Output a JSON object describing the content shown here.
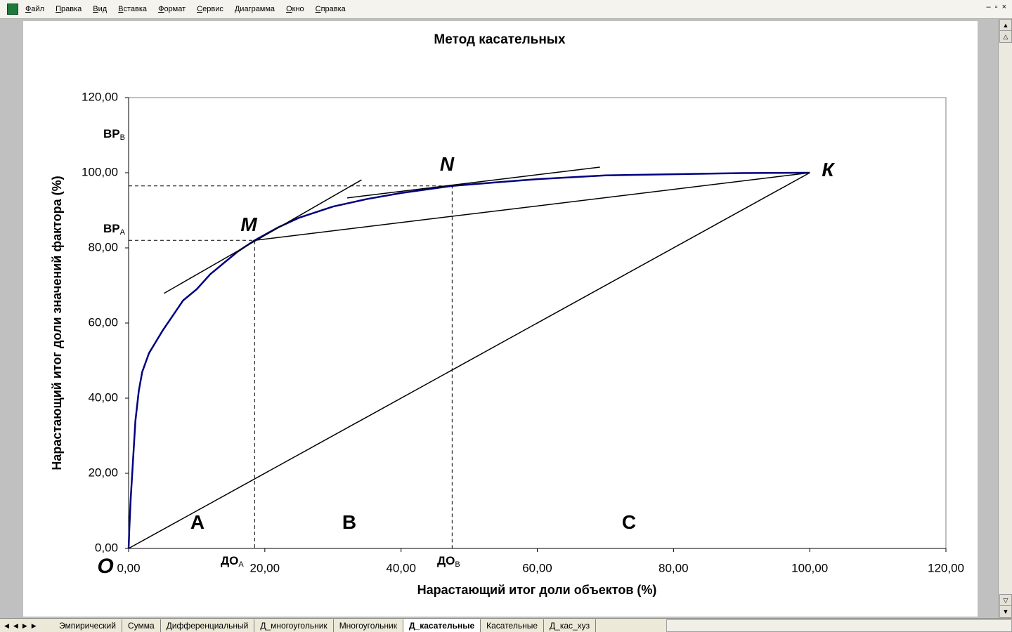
{
  "menu": [
    "Файл",
    "Правка",
    "Вид",
    "Вставка",
    "Формат",
    "Сервис",
    "Диаграмма",
    "Окно",
    "Справка"
  ],
  "tabs": [
    "Эмпирический",
    "Сумма",
    "Дифференциальный",
    "Д_многоугольник",
    "Многоугольник",
    "Д_касательные",
    "Касательные",
    "Д_кас_хуз"
  ],
  "active_tab": 5,
  "chart_data": {
    "type": "line",
    "title": "Метод касательных",
    "x_label": "Нарастающий итог доли объектов (%)",
    "y_label": "Нарастающий итог доли значений фактора (%)",
    "xlim": [
      0,
      120
    ],
    "ylim": [
      0,
      120
    ],
    "xticks": [
      {
        "value": 0,
        "label": "0,00"
      },
      {
        "value": 20,
        "label": "20,00"
      },
      {
        "value": 40,
        "label": "40,00"
      },
      {
        "value": 60,
        "label": "60,00"
      },
      {
        "value": 80,
        "label": "80,00"
      },
      {
        "value": 100,
        "label": "100,00"
      },
      {
        "value": 120,
        "label": "120,00"
      }
    ],
    "yticks": [
      {
        "value": 0,
        "label": "0,00"
      },
      {
        "value": 20,
        "label": "20,00"
      },
      {
        "value": 40,
        "label": "40,00"
      },
      {
        "value": 60,
        "label": "60,00"
      },
      {
        "value": 80,
        "label": "80,00"
      },
      {
        "value": 100,
        "label": "100,00"
      },
      {
        "value": 120,
        "label": "120,00"
      }
    ],
    "grid": false,
    "series": [
      {
        "color": "#000080",
        "width": 2.5,
        "dash": false,
        "x": [
          0,
          0.1,
          0.3,
          0.6,
          1,
          1.5,
          2,
          3,
          4,
          5,
          6.5,
          8,
          10,
          12,
          14,
          16,
          18.5,
          22,
          25,
          30,
          35,
          40,
          47.5,
          55,
          60,
          70,
          80,
          90,
          100
        ],
        "values": [
          0,
          5,
          13,
          22,
          34,
          42,
          47,
          52,
          55,
          58,
          62,
          66,
          69,
          73,
          76,
          79,
          82,
          85.5,
          88,
          91,
          93,
          94.6,
          96.5,
          97.6,
          98.3,
          99.3,
          99.6,
          99.9,
          100
        ]
      },
      {
        "color": "#000000",
        "width": 1.5,
        "dash": false,
        "x": [
          5.2,
          34.2
        ],
        "values": [
          67.9,
          98.1
        ]
      },
      {
        "color": "#000000",
        "width": 1.5,
        "dash": false,
        "x": [
          32.1,
          69.2
        ],
        "values": [
          93.3,
          101.5
        ]
      },
      {
        "color": "#000000",
        "width": 1.5,
        "dash": false,
        "x": [
          0,
          100
        ],
        "values": [
          0,
          100
        ]
      },
      {
        "color": "#000000",
        "width": 1.5,
        "dash": false,
        "x": [
          18.5,
          100
        ],
        "values": [
          82,
          100
        ]
      },
      {
        "color": "#000000",
        "width": 1,
        "dash": true,
        "x": [
          0,
          18.5,
          18.5
        ],
        "values": [
          82,
          82,
          0
        ]
      },
      {
        "color": "#000000",
        "width": 1,
        "dash": true,
        "x": [
          0,
          47.5,
          47.5
        ],
        "values": [
          96.5,
          96.5,
          0
        ]
      }
    ],
    "annotations": [
      {
        "text": "O"
      },
      {
        "text": "A"
      },
      {
        "text": "B"
      },
      {
        "text": "C"
      },
      {
        "text": "M"
      },
      {
        "text": "N"
      },
      {
        "text": "К"
      },
      {
        "text": "ВР",
        "sub": "В"
      },
      {
        "text": "ВР",
        "sub": "А"
      },
      {
        "text": "ДО",
        "sub": "А"
      },
      {
        "text": "ДО",
        "sub": "В"
      }
    ]
  }
}
